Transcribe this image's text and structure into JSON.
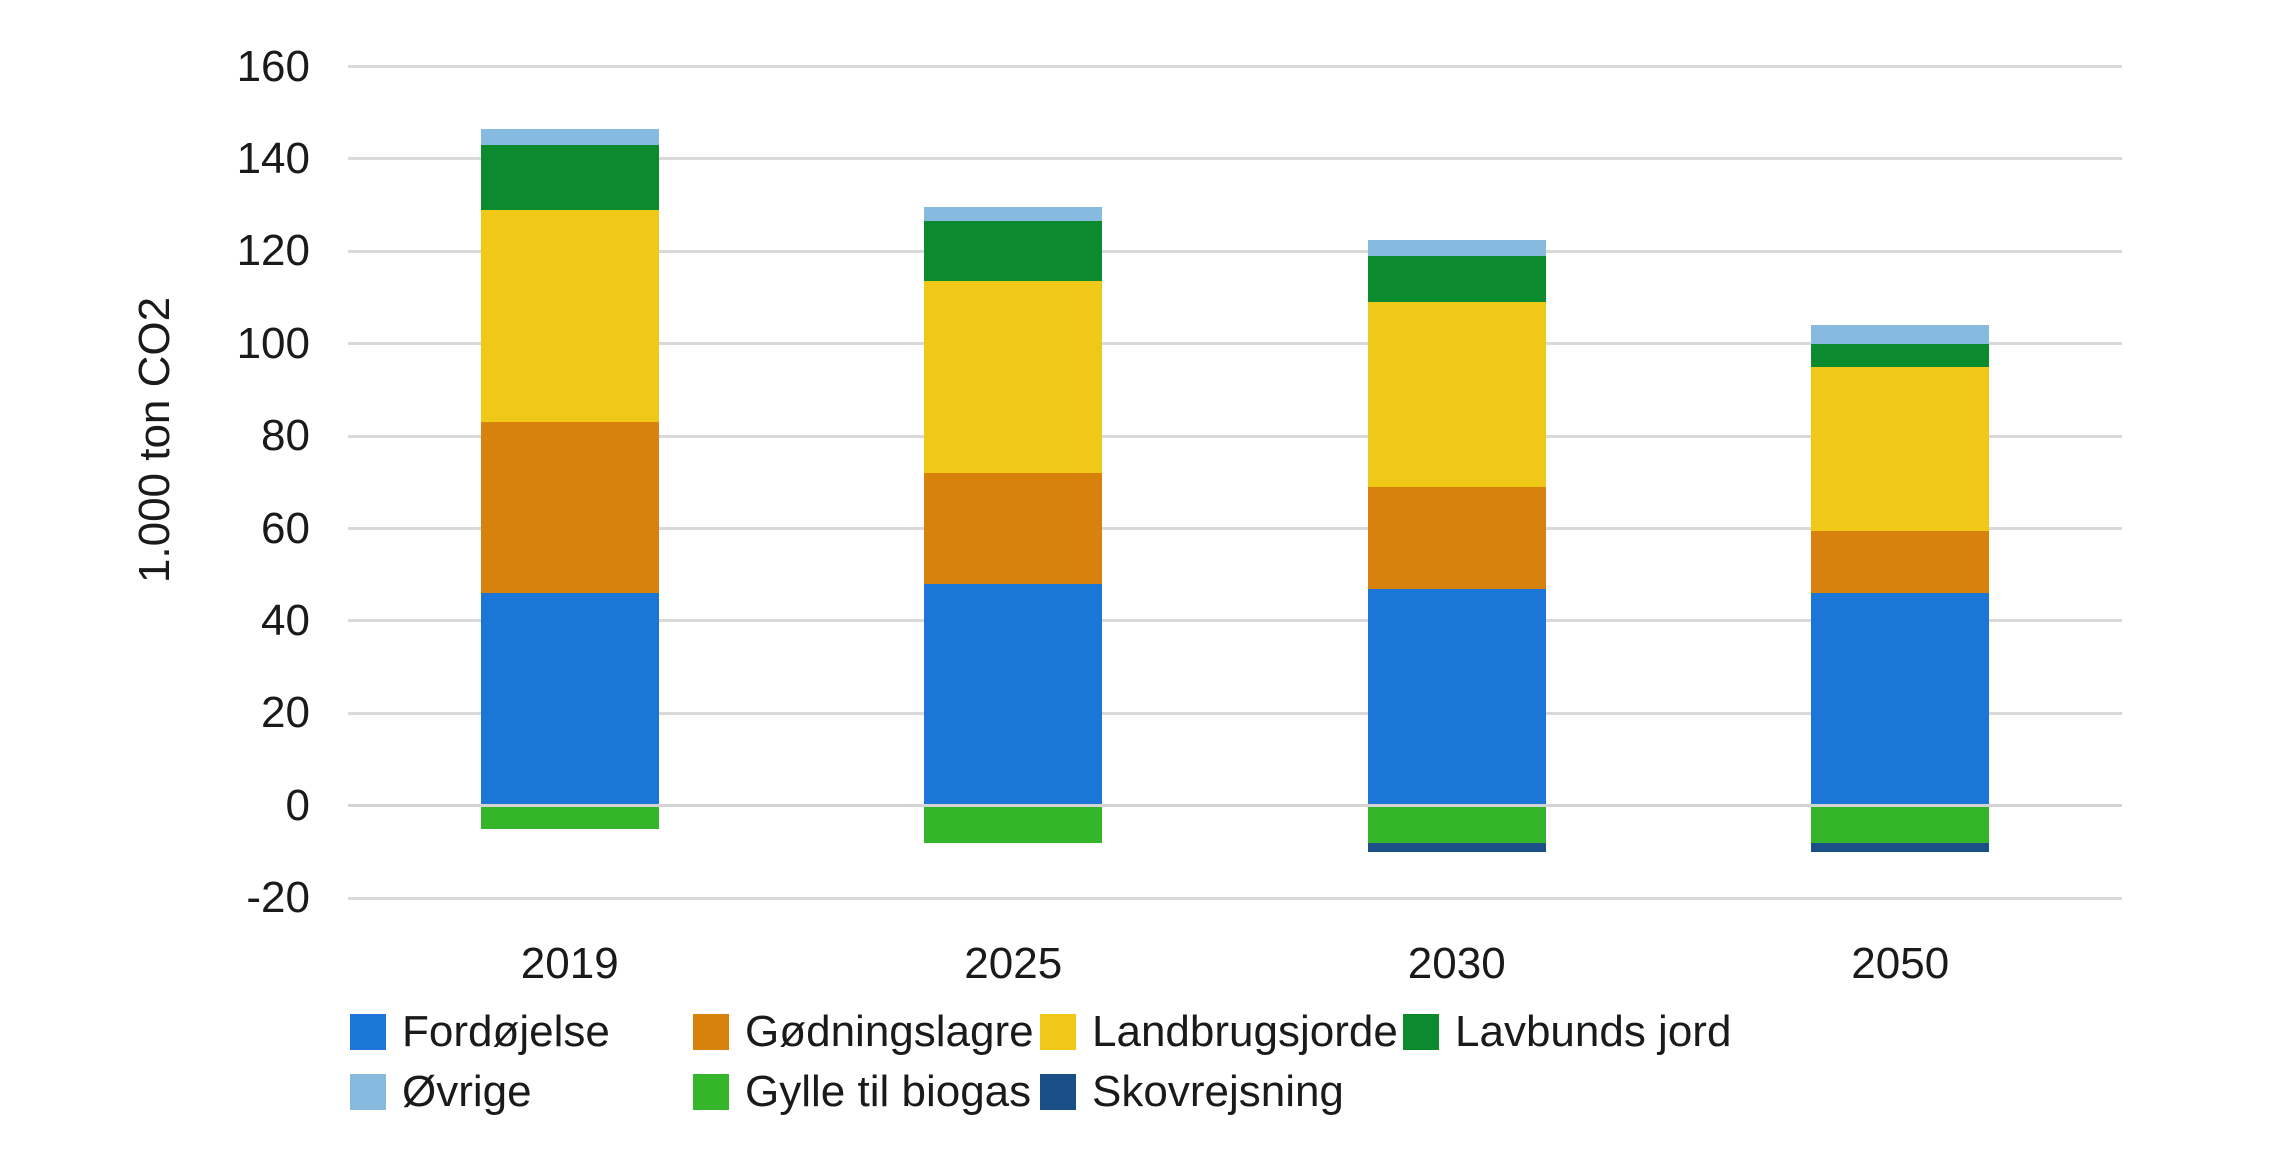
{
  "chart_data": {
    "type": "bar",
    "stacked": true,
    "title": "",
    "xlabel": "",
    "ylabel": "1.000 ton CO2",
    "ylim": [
      -20,
      160
    ],
    "y_ticks": [
      160,
      140,
      120,
      100,
      80,
      60,
      40,
      20,
      0,
      -20
    ],
    "grid": true,
    "categories": [
      "2019",
      "2025",
      "2030",
      "2050"
    ],
    "series": [
      {
        "name": "Fordøjelse",
        "color": "#1B76D8",
        "values": [
          46,
          48,
          47,
          46
        ]
      },
      {
        "name": "Gødningslagre",
        "color": "#D8820E",
        "values": [
          37,
          24,
          22,
          13.5
        ]
      },
      {
        "name": "Landbrugsjorde",
        "color": "#F0C818",
        "values": [
          46,
          41.5,
          40,
          35.5
        ]
      },
      {
        "name": "Lavbunds jord",
        "color": "#0B8B2D",
        "values": [
          14,
          13,
          10,
          5
        ]
      },
      {
        "name": "Øvrige",
        "color": "#87BADF",
        "values": [
          3.5,
          3,
          3.5,
          4
        ]
      },
      {
        "name": "Gylle til biogas",
        "color": "#35B52A",
        "values": [
          -5,
          -8,
          -8,
          -8
        ]
      },
      {
        "name": "Skovrejsning",
        "color": "#1B4F87",
        "values": [
          0,
          0,
          -2,
          -2
        ]
      }
    ],
    "legend_position": "bottom-left"
  },
  "legend": {
    "rows": [
      [
        "Fordøjelse",
        "Gødningslagre",
        "Landbrugsjorde",
        "Lavbunds jord"
      ],
      [
        "Øvrige",
        "Gylle til biogas",
        "Skovrejsning"
      ]
    ]
  },
  "colors": {
    "background": "#ffffff",
    "gridline": "#d9d9d9",
    "text": "#1a1a1a"
  }
}
